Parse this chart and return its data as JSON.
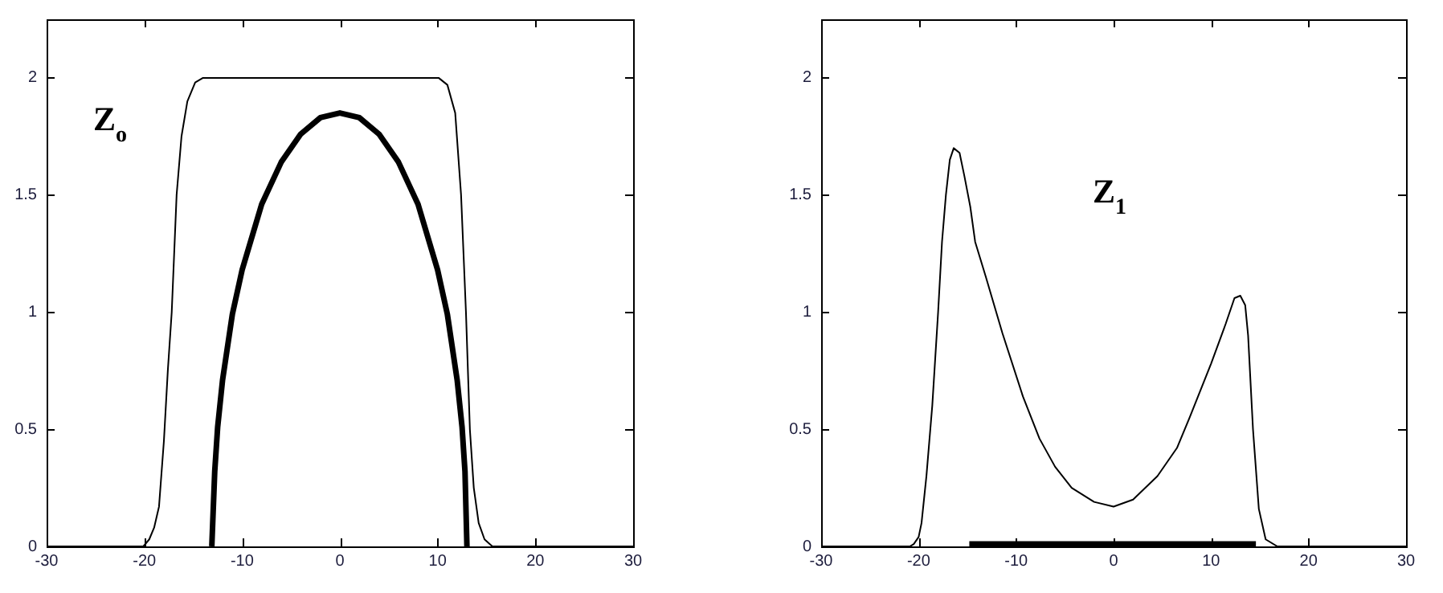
{
  "chart_data": [
    {
      "type": "line",
      "annotations": [
        "Z$_{o}$"
      ],
      "xlim": [
        -30,
        30
      ],
      "ylim": [
        0,
        2.25
      ],
      "xticks": [
        -30,
        -20,
        -10,
        0,
        10,
        20,
        30
      ],
      "yticks": [
        0,
        0.5,
        1,
        1.5,
        2
      ],
      "grid": false,
      "marker": "none",
      "series": [
        {
          "color": "#000000",
          "x": [
            -30,
            -20.1,
            -19.5,
            -19,
            -18.5,
            -18,
            -17.6,
            -17.2,
            -16.7,
            -16.2,
            -15.6,
            -14.8,
            -14,
            10.1,
            11,
            11.8,
            12.4,
            12.9,
            13.3,
            13.7,
            14.2,
            14.8,
            15.6,
            30
          ],
          "values": [
            0,
            0,
            0.03,
            0.08,
            0.17,
            0.45,
            0.75,
            1.0,
            1.5,
            1.75,
            1.9,
            1.98,
            2,
            2,
            1.97,
            1.85,
            1.5,
            1.0,
            0.5,
            0.25,
            0.1,
            0.03,
            0,
            0
          ]
        },
        {
          "color": "#000000",
          "x": [
            -13.1,
            -12.8,
            -12.5,
            -12,
            -11,
            -10,
            -8,
            -6,
            -4,
            -2,
            0,
            2,
            4,
            6,
            8,
            10,
            11,
            12,
            12.5,
            12.8,
            13
          ],
          "values": [
            0,
            0.32,
            0.51,
            0.71,
            0.99,
            1.18,
            1.46,
            1.64,
            1.76,
            1.83,
            1.85,
            1.83,
            1.76,
            1.64,
            1.46,
            1.18,
            0.99,
            0.71,
            0.51,
            0.32,
            0
          ]
        }
      ]
    },
    {
      "type": "line",
      "annotations": [
        "Z$_{1}$"
      ],
      "xlim": [
        -30,
        30
      ],
      "ylim": [
        0,
        2.25
      ],
      "xticks": [
        -30,
        -20,
        -10,
        0,
        10,
        20,
        30
      ],
      "yticks": [
        0,
        0.5,
        1,
        1.5,
        2
      ],
      "grid": false,
      "marker": "none",
      "series": [
        {
          "color": "#000000",
          "x": [
            -30,
            -20.9,
            -20.5,
            -20,
            -19.7,
            -19.2,
            -18.6,
            -18,
            -17.6,
            -17.2,
            -16.8,
            -16.4,
            -15.8,
            -15.3,
            -14.7,
            -14.2,
            -13.1,
            -11.4,
            -9.3,
            -7.6,
            -6,
            -4.3,
            -2,
            0,
            2,
            4.5,
            6.5,
            7.8,
            10,
            11.5,
            12.4,
            13,
            13.5,
            13.8,
            14.3,
            14.9,
            15.6,
            16.8,
            30
          ],
          "values": [
            0,
            0,
            0.01,
            0.04,
            0.1,
            0.3,
            0.6,
            1.0,
            1.3,
            1.5,
            1.65,
            1.7,
            1.68,
            1.58,
            1.45,
            1.3,
            1.15,
            0.91,
            0.64,
            0.46,
            0.34,
            0.25,
            0.19,
            0.17,
            0.2,
            0.3,
            0.42,
            0.55,
            0.78,
            0.95,
            1.06,
            1.07,
            1.03,
            0.9,
            0.5,
            0.16,
            0.03,
            0,
            0
          ]
        },
        {
          "color": "#000000",
          "x": [
            -14.8,
            14.6
          ],
          "values": [
            0.01,
            0.01
          ]
        }
      ]
    }
  ]
}
